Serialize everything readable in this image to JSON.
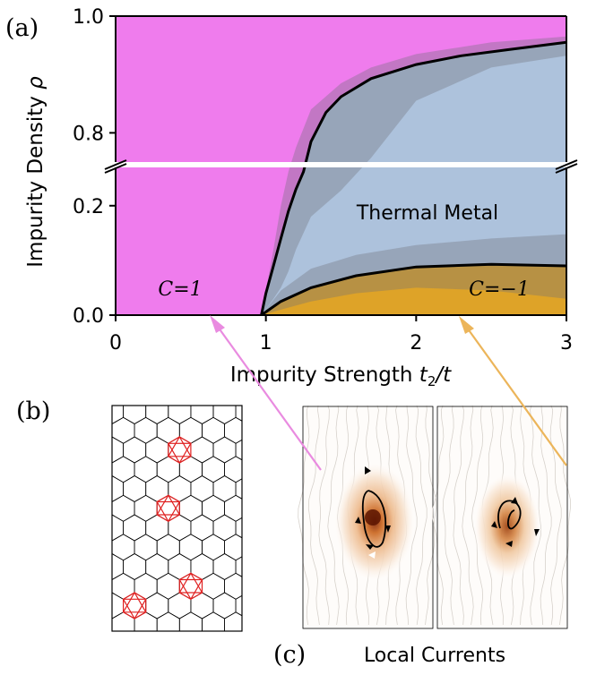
{
  "panel_labels": {
    "a": "(a)",
    "b": "(b)",
    "c": "(c)"
  },
  "chart_data": {
    "type": "area",
    "xlabel_main": "Impurity Strength ",
    "xlabel_math": "t",
    "xlabel_sub": "2",
    "xlabel_tail": "/t",
    "ylabel_main": "Impurity Density ",
    "ylabel_math": "ρ",
    "xlim": [
      0,
      3
    ],
    "ylim_lower": [
      0,
      0.27
    ],
    "ylim_upper": [
      0.75,
      1.0
    ],
    "x_ticks": [
      "0",
      "1",
      "2",
      "3"
    ],
    "y_ticks_lower": [
      "0.0",
      "0.2"
    ],
    "y_ticks_upper": [
      "0.8",
      "1.0"
    ],
    "regions": [
      {
        "name": "C=1",
        "label_math": "C=1",
        "color": "#ef7ced"
      },
      {
        "name": "Thermal Metal",
        "label": "Thermal Metal",
        "color": "#adc2dc"
      },
      {
        "name": "C=-1",
        "label_math": "C=−1",
        "color": "#dea328"
      }
    ],
    "series": [
      {
        "name": "upper boundary",
        "x": [
          0.97,
          1.0,
          1.05,
          1.1,
          1.15,
          1.2,
          1.25,
          1.3,
          1.4,
          1.5,
          1.7,
          2.0,
          2.3,
          2.6,
          3.0
        ],
        "y": [
          0.0,
          0.04,
          0.09,
          0.14,
          0.19,
          0.23,
          0.262,
          0.785,
          0.835,
          0.862,
          0.893,
          0.917,
          0.932,
          0.942,
          0.955
        ]
      },
      {
        "name": "lower boundary",
        "x": [
          0.97,
          1.1,
          1.3,
          1.6,
          2.0,
          2.5,
          3.0
        ],
        "y": [
          0.0,
          0.025,
          0.05,
          0.072,
          0.088,
          0.093,
          0.09
        ]
      }
    ],
    "uncertainty_bands": [
      {
        "name": "upper boundary band",
        "x": [
          0.97,
          1.05,
          1.1,
          1.15,
          1.2,
          1.3,
          1.5,
          1.7,
          2.0,
          2.5,
          3.0
        ],
        "y_low": [
          0.0,
          0.03,
          0.05,
          0.08,
          0.12,
          0.18,
          0.228,
          0.757,
          0.855,
          0.912,
          0.932
        ],
        "y_high": [
          0.0,
          0.12,
          0.2,
          0.262,
          0.775,
          0.84,
          0.885,
          0.912,
          0.935,
          0.955,
          0.965
        ]
      },
      {
        "name": "lower boundary band",
        "x": [
          0.97,
          1.1,
          1.3,
          1.6,
          2.0,
          2.5,
          3.0
        ],
        "y_low": [
          0.0,
          0.01,
          0.025,
          0.04,
          0.05,
          0.045,
          0.03
        ],
        "y_high": [
          0.0,
          0.045,
          0.085,
          0.11,
          0.128,
          0.14,
          0.148
        ]
      }
    ]
  },
  "panel_c": {
    "label": "Local Currents"
  },
  "colors": {
    "c1_arrow": "#e98be0",
    "cm1_arrow": "#ecb55a",
    "impurity_hex": "#e02020",
    "lattice": "#000000",
    "axis_break": "#ffffff"
  }
}
